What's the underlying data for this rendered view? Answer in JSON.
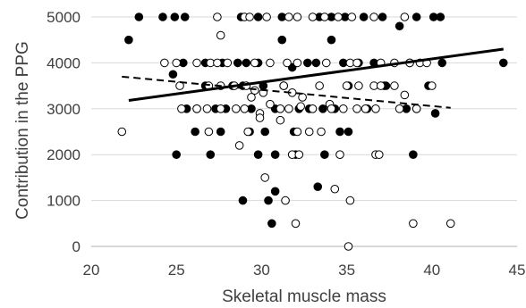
{
  "chart_data": {
    "type": "scatter",
    "title": "",
    "xlabel": "Skeletal muscle mass",
    "ylabel": "Contribution in the PPG",
    "xlim": [
      20,
      45
    ],
    "ylim": [
      0,
      5000
    ],
    "x_ticks": [
      20,
      25,
      30,
      35,
      40,
      45
    ],
    "y_ticks": [
      0,
      1000,
      2000,
      3000,
      4000,
      5000
    ],
    "x_tick_labels": [
      "20",
      "25",
      "30",
      "35",
      "40",
      "45"
    ],
    "y_tick_labels": [
      "0",
      "1000",
      "2000",
      "3000",
      "4000",
      "5000"
    ],
    "grid": "horizontal",
    "legend": "none",
    "series": [
      {
        "marker": "filled-circle",
        "color": "#000000",
        "points": [
          [
            22.2,
            4500
          ],
          [
            22.8,
            5000
          ],
          [
            24.2,
            5000
          ],
          [
            24.9,
            5000
          ],
          [
            25.5,
            5000
          ],
          [
            28.8,
            5000
          ],
          [
            29.8,
            5000
          ],
          [
            31.2,
            5000
          ],
          [
            33.4,
            5000
          ],
          [
            34.1,
            5000
          ],
          [
            34.9,
            5000
          ],
          [
            36.0,
            5000
          ],
          [
            37.1,
            5000
          ],
          [
            39.1,
            5000
          ],
          [
            40.1,
            5000
          ],
          [
            40.5,
            5000
          ],
          [
            24.8,
            3750
          ],
          [
            25.4,
            4000
          ],
          [
            26.7,
            4000
          ],
          [
            27.7,
            4000
          ],
          [
            28.6,
            4000
          ],
          [
            29.1,
            4000
          ],
          [
            29.8,
            4000
          ],
          [
            31.2,
            4500
          ],
          [
            31.8,
            3900
          ],
          [
            32.7,
            4000
          ],
          [
            33.2,
            4000
          ],
          [
            34.1,
            4500
          ],
          [
            34.8,
            4000
          ],
          [
            35.7,
            4000
          ],
          [
            36.6,
            4000
          ],
          [
            37.2,
            3500
          ],
          [
            38.1,
            4800
          ],
          [
            38.7,
            4000
          ],
          [
            40.6,
            4000
          ],
          [
            44.2,
            4000
          ],
          [
            25.6,
            3000
          ],
          [
            26.2,
            3000
          ],
          [
            26.7,
            3500
          ],
          [
            27.3,
            3000
          ],
          [
            27.9,
            3000
          ],
          [
            28.3,
            3500
          ],
          [
            28.9,
            3500
          ],
          [
            29.4,
            3000
          ],
          [
            30.1,
            3500
          ],
          [
            30.8,
            3000
          ],
          [
            31.3,
            3500
          ],
          [
            32.2,
            3000
          ],
          [
            32.8,
            3000
          ],
          [
            33.6,
            3000
          ],
          [
            34.3,
            3000
          ],
          [
            35.1,
            3500
          ],
          [
            36.2,
            3000
          ],
          [
            37.3,
            3500
          ],
          [
            38.5,
            3000
          ],
          [
            39.1,
            3000
          ],
          [
            39.8,
            3500
          ],
          [
            40.2,
            2900
          ],
          [
            26.1,
            2500
          ],
          [
            27.6,
            2500
          ],
          [
            29.3,
            2500
          ],
          [
            30.2,
            2500
          ],
          [
            30.8,
            2000
          ],
          [
            32.0,
            2000
          ],
          [
            33.7,
            2000
          ],
          [
            34.6,
            2500
          ],
          [
            35.1,
            2500
          ],
          [
            25.0,
            2000
          ],
          [
            27.0,
            2000
          ],
          [
            29.8,
            2000
          ],
          [
            31.9,
            2500
          ],
          [
            38.9,
            2000
          ],
          [
            28.9,
            1000
          ],
          [
            30.4,
            1000
          ],
          [
            30.8,
            1200
          ],
          [
            33.3,
            1300
          ],
          [
            30.6,
            500
          ]
        ]
      },
      {
        "marker": "open-circle",
        "color": "#000000",
        "points": [
          [
            27.4,
            5000
          ],
          [
            29.0,
            5000
          ],
          [
            29.3,
            5000
          ],
          [
            30.3,
            5000
          ],
          [
            31.6,
            5000
          ],
          [
            32.1,
            5000
          ],
          [
            33.0,
            5000
          ],
          [
            33.7,
            5000
          ],
          [
            34.5,
            5000
          ],
          [
            35.3,
            5000
          ],
          [
            36.6,
            5000
          ],
          [
            38.4,
            5000
          ],
          [
            27.6,
            4600
          ],
          [
            24.3,
            4000
          ],
          [
            25.0,
            4000
          ],
          [
            26.2,
            4000
          ],
          [
            27.0,
            4000
          ],
          [
            27.4,
            4000
          ],
          [
            28.0,
            4000
          ],
          [
            29.6,
            4000
          ],
          [
            30.5,
            4000
          ],
          [
            31.5,
            4000
          ],
          [
            32.1,
            4000
          ],
          [
            33.8,
            4000
          ],
          [
            35.2,
            4000
          ],
          [
            35.6,
            4000
          ],
          [
            37.0,
            4000
          ],
          [
            37.8,
            4000
          ],
          [
            38.7,
            4000
          ],
          [
            39.3,
            4000
          ],
          [
            39.7,
            4000
          ],
          [
            40.0,
            3500
          ],
          [
            25.2,
            3500
          ],
          [
            26.9,
            3500
          ],
          [
            27.6,
            3500
          ],
          [
            28.4,
            3500
          ],
          [
            29.1,
            3500
          ],
          [
            29.6,
            3400
          ],
          [
            30.1,
            3350
          ],
          [
            31.3,
            3500
          ],
          [
            31.8,
            3350
          ],
          [
            32.4,
            3250
          ],
          [
            33.4,
            3500
          ],
          [
            34.0,
            3100
          ],
          [
            35.0,
            3500
          ],
          [
            35.7,
            3500
          ],
          [
            36.6,
            3500
          ],
          [
            37.0,
            3500
          ],
          [
            37.8,
            3500
          ],
          [
            38.4,
            3300
          ],
          [
            39.1,
            3000
          ],
          [
            25.3,
            3000
          ],
          [
            26.2,
            3000
          ],
          [
            26.8,
            3000
          ],
          [
            27.6,
            3000
          ],
          [
            28.5,
            3000
          ],
          [
            29.0,
            3000
          ],
          [
            29.4,
            3250
          ],
          [
            29.9,
            2900
          ],
          [
            30.5,
            3100
          ],
          [
            31.1,
            3000
          ],
          [
            31.6,
            3000
          ],
          [
            32.3,
            3050
          ],
          [
            33.0,
            3000
          ],
          [
            34.1,
            3000
          ],
          [
            34.8,
            3000
          ],
          [
            35.6,
            3000
          ],
          [
            36.1,
            3000
          ],
          [
            36.7,
            3000
          ],
          [
            38.1,
            3000
          ],
          [
            21.8,
            2500
          ],
          [
            26.9,
            2500
          ],
          [
            29.2,
            2500
          ],
          [
            29.9,
            2800
          ],
          [
            31.1,
            2750
          ],
          [
            32.1,
            2500
          ],
          [
            32.8,
            2500
          ],
          [
            33.5,
            2500
          ],
          [
            28.7,
            2200
          ],
          [
            31.8,
            2000
          ],
          [
            32.2,
            2000
          ],
          [
            34.6,
            2000
          ],
          [
            36.7,
            2000
          ],
          [
            36.9,
            2000
          ],
          [
            30.2,
            1500
          ],
          [
            31.4,
            1000
          ],
          [
            34.3,
            1250
          ],
          [
            35.2,
            1000
          ],
          [
            32.0,
            500
          ],
          [
            38.9,
            500
          ],
          [
            41.1,
            500
          ],
          [
            35.1,
            0
          ]
        ]
      }
    ],
    "trendlines": [
      {
        "style": "solid",
        "color": "#000000",
        "x": [
          22.2,
          44.2
        ],
        "y": [
          3180,
          4300
        ]
      },
      {
        "style": "dashed",
        "color": "#000000",
        "x": [
          21.8,
          41.1
        ],
        "y": [
          3700,
          3020
        ]
      }
    ],
    "colors": {
      "axis": "#bfbfbf",
      "grid": "#d9d9d9",
      "text": "#404040",
      "background": "#ffffff"
    }
  }
}
